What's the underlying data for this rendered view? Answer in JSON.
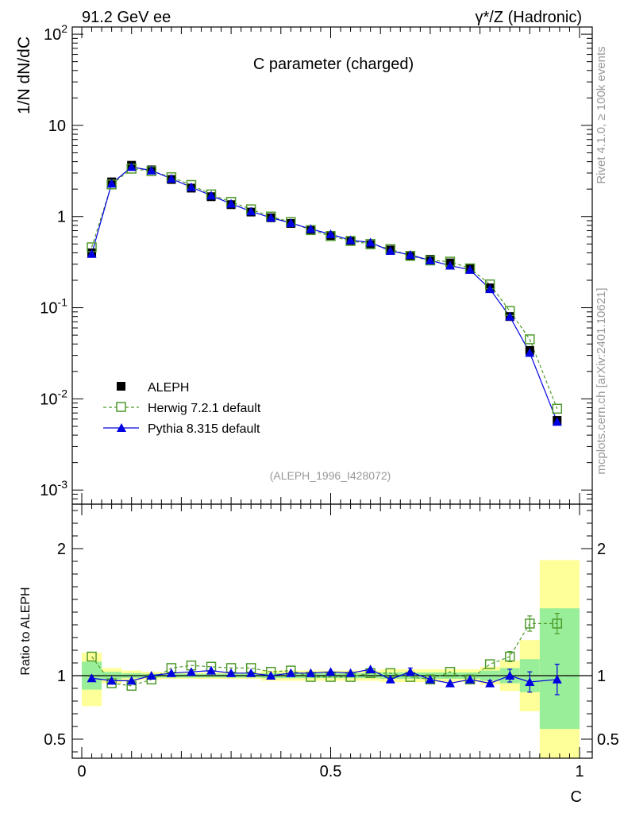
{
  "header": {
    "left": "91.2 GeV ee",
    "right": "γ*/Z (Hadronic)"
  },
  "side_text": {
    "top": "Rivet 4.1.0, ≥ 100k events",
    "bottom": "mcplots.cern.ch [arXiv:2401.10621]"
  },
  "reference": "(ALEPH_1996_I428072)",
  "chart_data": [
    {
      "type": "line",
      "title": "C parameter (charged)",
      "xlabel": "C",
      "ylabel": "1/N  dN/dC",
      "yscale": "log",
      "xlim": [
        0,
        1
      ],
      "ylim": [
        0.0007,
        120
      ],
      "yticks": [
        {
          "value": 0.001,
          "base": "10",
          "exp": "-3"
        },
        {
          "value": 0.01,
          "base": "10",
          "exp": "-2"
        },
        {
          "value": 0.1,
          "base": "10",
          "exp": "-1"
        },
        {
          "value": 1,
          "base": "1",
          "exp": ""
        },
        {
          "value": 10,
          "base": "10",
          "exp": ""
        },
        {
          "value": 100,
          "base": "10",
          "exp": "2"
        }
      ],
      "legend_position": "bottom-left",
      "x": [
        0.02,
        0.06,
        0.1,
        0.14,
        0.18,
        0.22,
        0.26,
        0.3,
        0.34,
        0.38,
        0.42,
        0.46,
        0.5,
        0.54,
        0.58,
        0.62,
        0.66,
        0.7,
        0.74,
        0.78,
        0.82,
        0.86,
        0.9,
        0.955
      ],
      "series": [
        {
          "name": "ALEPH",
          "marker": "square-filled",
          "color": "#000000",
          "values": [
            0.4,
            2.4,
            3.65,
            3.25,
            2.55,
            2.05,
            1.65,
            1.35,
            1.12,
            0.97,
            0.84,
            0.72,
            0.62,
            0.54,
            0.49,
            0.43,
            0.37,
            0.34,
            0.31,
            0.27,
            0.165,
            0.08,
            0.034,
            0.0058
          ]
        },
        {
          "name": "Herwig 7.2.1 default",
          "marker": "square-open",
          "color": "#4f9a2c",
          "dashed": true,
          "values": [
            0.46,
            2.25,
            3.35,
            3.15,
            2.7,
            2.22,
            1.75,
            1.45,
            1.2,
            1.0,
            0.87,
            0.71,
            0.61,
            0.54,
            0.5,
            0.44,
            0.37,
            0.33,
            0.32,
            0.27,
            0.18,
            0.092,
            0.045,
            0.0078
          ]
        },
        {
          "name": "Pythia 8.315 default",
          "marker": "triangle-filled",
          "color": "#0000e0",
          "values": [
            0.39,
            2.3,
            3.5,
            3.2,
            2.6,
            2.1,
            1.7,
            1.38,
            1.14,
            0.97,
            0.85,
            0.73,
            0.64,
            0.55,
            0.52,
            0.42,
            0.38,
            0.33,
            0.29,
            0.26,
            0.16,
            0.08,
            0.032,
            0.0056
          ]
        }
      ]
    },
    {
      "type": "line",
      "ylabel": "Ratio to ALEPH",
      "xlabel": "C",
      "xlim": [
        0,
        1
      ],
      "ylim": [
        0.35,
        2.35
      ],
      "xticks": [
        {
          "value": 0,
          "label": "0"
        },
        {
          "value": 0.5,
          "label": "0.5"
        },
        {
          "value": 1,
          "label": "1"
        }
      ],
      "yticks": [
        {
          "value": 0.5,
          "label": "0.5"
        },
        {
          "value": 1,
          "label": "1"
        },
        {
          "value": 2,
          "label": "2"
        }
      ],
      "bands": [
        {
          "x0": 0.0,
          "x1": 0.04,
          "green": [
            0.89,
            1.11
          ],
          "yellow": [
            0.76,
            1.18
          ]
        },
        {
          "x0": 0.04,
          "x1": 0.08,
          "green": [
            0.97,
            1.03
          ],
          "yellow": [
            0.94,
            1.06
          ]
        },
        {
          "x0": 0.08,
          "x1": 0.12,
          "green": [
            0.98,
            1.02
          ],
          "yellow": [
            0.96,
            1.04
          ]
        },
        {
          "x0": 0.12,
          "x1": 0.16,
          "green": [
            0.985,
            1.015
          ],
          "yellow": [
            0.97,
            1.03
          ]
        },
        {
          "x0": 0.16,
          "x1": 0.36,
          "green": [
            0.985,
            1.015
          ],
          "yellow": [
            0.975,
            1.025
          ]
        },
        {
          "x0": 0.36,
          "x1": 0.6,
          "green": [
            0.98,
            1.02
          ],
          "yellow": [
            0.96,
            1.04
          ]
        },
        {
          "x0": 0.6,
          "x1": 0.8,
          "green": [
            0.975,
            1.025
          ],
          "yellow": [
            0.95,
            1.05
          ]
        },
        {
          "x0": 0.8,
          "x1": 0.84,
          "green": [
            0.96,
            1.04
          ],
          "yellow": [
            0.93,
            1.07
          ]
        },
        {
          "x0": 0.84,
          "x1": 0.88,
          "green": [
            0.94,
            1.06
          ],
          "yellow": [
            0.88,
            1.12
          ]
        },
        {
          "x0": 0.88,
          "x1": 0.92,
          "green": [
            0.87,
            1.13
          ],
          "yellow": [
            0.72,
            1.28
          ]
        },
        {
          "x0": 0.92,
          "x1": 1.0,
          "green": [
            0.58,
            1.53
          ],
          "yellow": [
            0.35,
            1.91
          ]
        }
      ],
      "series": [
        {
          "name": "Herwig 7.2.1 default",
          "marker": "square-open",
          "color": "#4f9a2c",
          "dashed": true,
          "values": [
            1.15,
            0.94,
            0.92,
            0.97,
            1.06,
            1.08,
            1.07,
            1.06,
            1.06,
            1.03,
            1.04,
            0.99,
            0.99,
            0.99,
            1.02,
            1.02,
            0.99,
            0.97,
            1.03,
            0.97,
            1.09,
            1.15,
            1.41,
            1.41
          ],
          "errors": [
            0,
            0,
            0,
            0,
            0,
            0,
            0,
            0,
            0,
            0,
            0,
            0,
            0,
            0,
            0,
            0,
            0,
            0,
            0,
            0,
            0,
            0.04,
            0.06,
            0.08
          ]
        },
        {
          "name": "Pythia 8.315 default",
          "marker": "triangle-filled",
          "color": "#0000e0",
          "values": [
            0.98,
            0.96,
            0.96,
            1.0,
            1.02,
            1.03,
            1.04,
            1.02,
            1.02,
            1.0,
            1.02,
            1.02,
            1.03,
            1.02,
            1.05,
            0.97,
            1.03,
            0.97,
            0.94,
            0.97,
            0.94,
            1.0,
            0.95,
            0.97
          ],
          "errors": [
            0,
            0,
            0,
            0,
            0,
            0,
            0,
            0,
            0,
            0,
            0,
            0,
            0,
            0,
            0,
            0,
            0.03,
            0,
            0,
            0,
            0.02,
            0.05,
            0.08,
            0.12
          ]
        }
      ]
    }
  ]
}
